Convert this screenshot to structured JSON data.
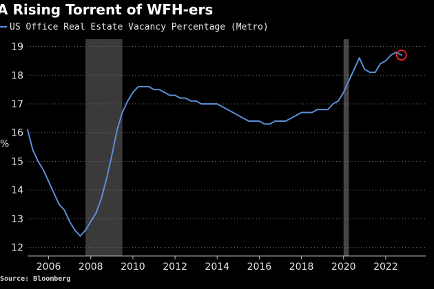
{
  "chart_data": {
    "type": "line",
    "title": "A Rising Torrent of WFH-ers",
    "source": "Source: Bloomberg",
    "ylabel_fragment": "%",
    "ylim": [
      11.8,
      19.3
    ],
    "xlim": [
      2005.0,
      2023.9
    ],
    "yticks": [
      12,
      13,
      14,
      15,
      16,
      17,
      18,
      19
    ],
    "xticks": [
      2006,
      2008,
      2010,
      2012,
      2014,
      2016,
      2018,
      2020,
      2022
    ],
    "grid": true,
    "legend_position": "top-left",
    "recessions": [
      [
        2007.75,
        2009.5
      ],
      [
        2020.0,
        2020.25
      ]
    ],
    "highlight_marker": {
      "x": 2022.75,
      "y": 18.7
    },
    "series": [
      {
        "name": "US Office Real Estate Vacancy Percentage (Metro)",
        "color": "#5b8fd6",
        "x": [
          2005.0,
          2005.25,
          2005.5,
          2005.75,
          2006.0,
          2006.25,
          2006.5,
          2006.75,
          2007.0,
          2007.25,
          2007.5,
          2007.75,
          2008.0,
          2008.25,
          2008.5,
          2008.75,
          2009.0,
          2009.25,
          2009.5,
          2009.75,
          2010.0,
          2010.25,
          2010.5,
          2010.75,
          2011.0,
          2011.25,
          2011.5,
          2011.75,
          2012.0,
          2012.25,
          2012.5,
          2012.75,
          2013.0,
          2013.25,
          2013.5,
          2013.75,
          2014.0,
          2014.25,
          2014.5,
          2014.75,
          2015.0,
          2015.25,
          2015.5,
          2015.75,
          2016.0,
          2016.25,
          2016.5,
          2016.75,
          2017.0,
          2017.25,
          2017.5,
          2017.75,
          2018.0,
          2018.25,
          2018.5,
          2018.75,
          2019.0,
          2019.25,
          2019.5,
          2019.75,
          2020.0,
          2020.25,
          2020.5,
          2020.75,
          2021.0,
          2021.25,
          2021.5,
          2021.75,
          2022.0,
          2022.25,
          2022.5,
          2022.75
        ],
        "values": [
          16.1,
          15.4,
          15.0,
          14.7,
          14.3,
          13.9,
          13.5,
          13.3,
          12.9,
          12.6,
          12.4,
          12.6,
          12.9,
          13.2,
          13.7,
          14.4,
          15.2,
          16.1,
          16.7,
          17.1,
          17.4,
          17.6,
          17.6,
          17.6,
          17.5,
          17.5,
          17.4,
          17.3,
          17.3,
          17.2,
          17.2,
          17.1,
          17.1,
          17.0,
          17.0,
          17.0,
          17.0,
          16.9,
          16.8,
          16.7,
          16.6,
          16.5,
          16.4,
          16.4,
          16.4,
          16.3,
          16.3,
          16.4,
          16.4,
          16.4,
          16.5,
          16.6,
          16.7,
          16.7,
          16.7,
          16.8,
          16.8,
          16.8,
          17.0,
          17.1,
          17.4,
          17.8,
          18.2,
          18.6,
          18.2,
          18.1,
          18.1,
          18.4,
          18.5,
          18.7,
          18.8,
          18.7
        ]
      }
    ]
  }
}
